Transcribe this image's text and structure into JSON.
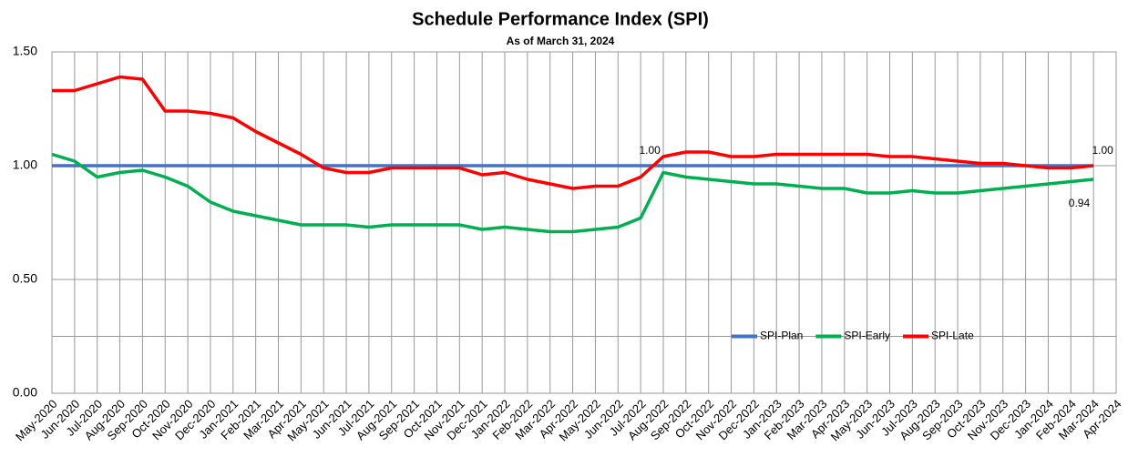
{
  "chart_data": {
    "type": "line",
    "title": "Schedule Performance Index (SPI)",
    "subtitle": "As of March 31, 2024",
    "categories": [
      "May-2020",
      "Jun-2020",
      "Jul-2020",
      "Aug-2020",
      "Sep-2020",
      "Oct-2020",
      "Nov-2020",
      "Dec-2020",
      "Jan-2021",
      "Feb-2021",
      "Mar-2021",
      "Apr-2021",
      "May-2021",
      "Jun-2021",
      "Jul-2021",
      "Aug-2021",
      "Sep-2021",
      "Oct-2021",
      "Nov-2021",
      "Dec-2021",
      "Jan-2022",
      "Feb-2022",
      "Mar-2022",
      "Apr-2022",
      "May-2022",
      "Jun-2022",
      "Jul-2022",
      "Aug-2022",
      "Sep-2022",
      "Oct-2022",
      "Nov-2022",
      "Dec-2022",
      "Jan-2023",
      "Feb-2023",
      "Mar-2023",
      "Apr-2023",
      "May-2023",
      "Jun-2023",
      "Jul-2023",
      "Aug-2023",
      "Sep-2023",
      "Oct-2023",
      "Nov-2023",
      "Dec-2023",
      "Jan-2024",
      "Feb-2024",
      "Mar-2024",
      "Apr-2024"
    ],
    "series": [
      {
        "name": "SPI-Plan",
        "color": "#4472c4",
        "values": [
          1,
          1,
          1,
          1,
          1,
          1,
          1,
          1,
          1,
          1,
          1,
          1,
          1,
          1,
          1,
          1,
          1,
          1,
          1,
          1,
          1,
          1,
          1,
          1,
          1,
          1,
          1,
          1,
          1,
          1,
          1,
          1,
          1,
          1,
          1,
          1,
          1,
          1,
          1,
          1,
          1,
          1,
          1,
          1,
          1,
          1,
          1,
          null
        ],
        "value_labels": [
          null,
          null,
          null,
          null,
          null,
          null,
          null,
          null,
          null,
          null,
          null,
          null,
          null,
          null,
          null,
          null,
          null,
          null,
          null,
          null,
          null,
          null,
          null,
          null,
          null,
          null,
          "1.00",
          null,
          null,
          null,
          null,
          null,
          null,
          null,
          null,
          null,
          null,
          null,
          null,
          null,
          null,
          null,
          null,
          null,
          null,
          null,
          null,
          null
        ]
      },
      {
        "name": "SPI-Early",
        "color": "#00b050",
        "values": [
          1.05,
          1.02,
          0.95,
          0.97,
          0.98,
          0.95,
          0.91,
          0.84,
          0.8,
          0.78,
          0.76,
          0.74,
          0.74,
          0.74,
          0.73,
          0.74,
          0.74,
          0.74,
          0.74,
          0.72,
          0.73,
          0.72,
          0.71,
          0.71,
          0.72,
          0.73,
          0.77,
          0.97,
          0.95,
          0.94,
          0.93,
          0.92,
          0.92,
          0.91,
          0.9,
          0.9,
          0.88,
          0.88,
          0.89,
          0.88,
          0.88,
          0.89,
          0.9,
          0.91,
          0.92,
          0.93,
          0.94,
          null
        ],
        "value_labels": [
          null,
          null,
          null,
          null,
          null,
          null,
          null,
          null,
          null,
          null,
          null,
          null,
          null,
          null,
          null,
          null,
          null,
          null,
          null,
          null,
          null,
          null,
          null,
          null,
          null,
          null,
          null,
          null,
          null,
          null,
          null,
          null,
          null,
          null,
          null,
          null,
          null,
          null,
          null,
          null,
          null,
          null,
          null,
          null,
          null,
          null,
          "0.94",
          null
        ]
      },
      {
        "name": "SPI-Late",
        "color": "#ff0000",
        "values": [
          1.33,
          1.33,
          1.36,
          1.39,
          1.38,
          1.24,
          1.24,
          1.23,
          1.21,
          1.15,
          1.1,
          1.05,
          0.99,
          0.97,
          0.97,
          0.99,
          0.99,
          0.99,
          0.99,
          0.96,
          0.97,
          0.94,
          0.92,
          0.9,
          0.91,
          0.91,
          0.95,
          1.04,
          1.06,
          1.06,
          1.04,
          1.04,
          1.05,
          1.05,
          1.05,
          1.05,
          1.05,
          1.04,
          1.04,
          1.03,
          1.02,
          1.01,
          1.01,
          1.0,
          0.99,
          0.99,
          1.0,
          null
        ],
        "value_labels": [
          null,
          null,
          null,
          null,
          null,
          null,
          null,
          null,
          null,
          null,
          null,
          null,
          null,
          null,
          null,
          null,
          null,
          null,
          null,
          null,
          null,
          null,
          null,
          null,
          null,
          null,
          null,
          null,
          null,
          null,
          null,
          null,
          null,
          null,
          null,
          null,
          null,
          null,
          null,
          null,
          null,
          null,
          null,
          null,
          null,
          null,
          "1.00",
          null
        ]
      }
    ],
    "ylim": [
      0,
      1.5
    ],
    "yticks": [
      {
        "value": 0,
        "label": "0.00"
      },
      {
        "value": 0.5,
        "label": "0.50"
      },
      {
        "value": 1,
        "label": "1.00"
      },
      {
        "value": 1.5,
        "label": "1.50"
      }
    ],
    "minor_yticks": [
      0.25
    ],
    "grid": true,
    "legend": "lower right"
  }
}
